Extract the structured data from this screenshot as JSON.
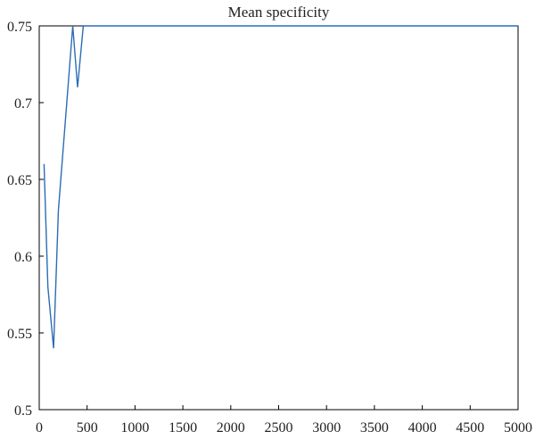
{
  "chart_data": {
    "type": "line",
    "title": "Mean specificity",
    "xlabel": "",
    "ylabel": "",
    "xlim": [
      0,
      5000
    ],
    "ylim": [
      0.5,
      0.75
    ],
    "x_ticks": [
      0,
      500,
      1000,
      1500,
      2000,
      2500,
      3000,
      3500,
      4000,
      4500,
      5000
    ],
    "y_ticks": [
      0.5,
      0.55,
      0.6,
      0.65,
      0.7,
      0.75
    ],
    "y_tick_labels": [
      "0.5",
      "0.55",
      "0.6",
      "0.65",
      "0.7",
      "0.75"
    ],
    "grid": false,
    "legend": "none",
    "series": [
      {
        "color": "#2a6db5",
        "x": [
          50,
          90,
          150,
          200,
          350,
          400,
          460,
          500,
          1000,
          2000,
          3000,
          4000,
          5000
        ],
        "y": [
          0.66,
          0.58,
          0.54,
          0.63,
          0.75,
          0.71,
          0.75,
          0.75,
          0.75,
          0.75,
          0.75,
          0.75,
          0.75
        ]
      }
    ]
  }
}
